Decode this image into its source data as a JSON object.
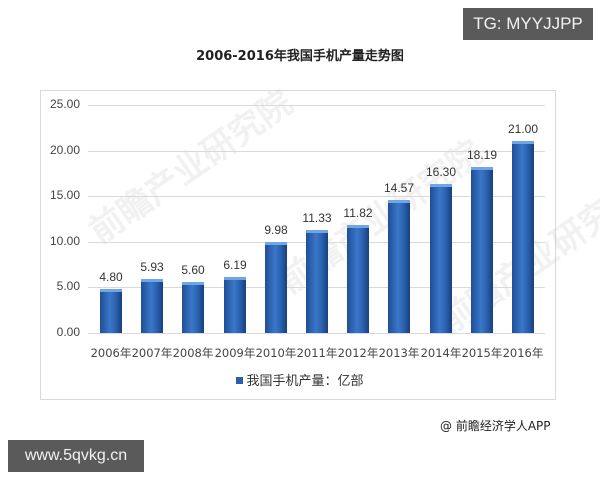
{
  "overlay": {
    "tg_badge": "TG: MYYJJPP",
    "url_badge": "www.5qvkg.cn",
    "source": "@ 前瞻经济学人APP",
    "watermark": "前瞻产业研究院"
  },
  "chart_data": {
    "type": "bar",
    "title": "2006-2016年我国手机产量走势图",
    "xlabel": "",
    "ylabel": "",
    "categories": [
      "2006年",
      "2007年",
      "2008年",
      "2009年",
      "2010年",
      "2011年",
      "2012年",
      "2013年",
      "2014年",
      "2015年",
      "2016年"
    ],
    "series": [
      {
        "name": "我国手机产量：亿部",
        "values": [
          4.8,
          5.93,
          5.6,
          6.19,
          9.98,
          11.33,
          11.82,
          14.57,
          16.3,
          18.19,
          21.0
        ],
        "labels": [
          "4.80",
          "5.93",
          "5.60",
          "6.19",
          "9.98",
          "11.33",
          "11.82",
          "14.57",
          "16.30",
          "18.19",
          "21.00"
        ],
        "color": "#2c5fa8"
      }
    ],
    "ylim": [
      0,
      25
    ],
    "yticks": [
      "0.00",
      "5.00",
      "10.00",
      "15.00",
      "20.00",
      "25.00"
    ],
    "grid": true,
    "legend_position": "bottom",
    "legend": [
      "我国手机产量：亿部"
    ]
  }
}
